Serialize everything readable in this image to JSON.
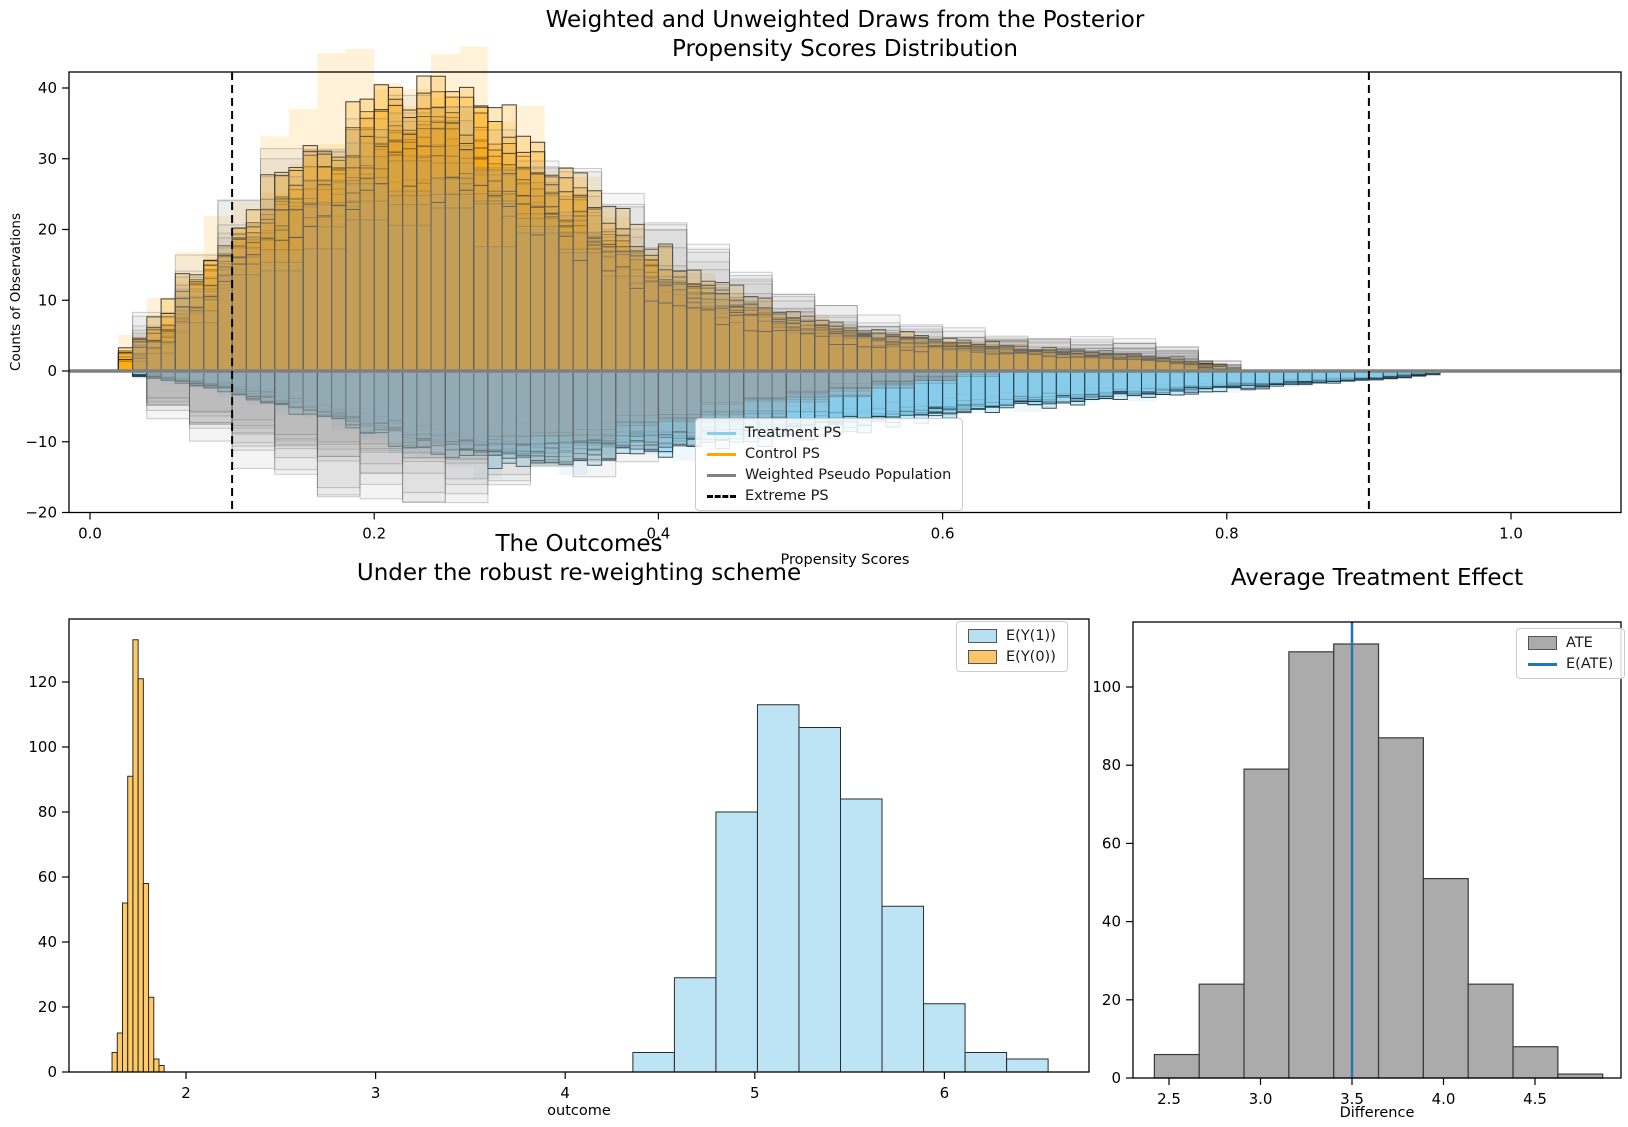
{
  "figure_background": "#ffffff",
  "colors": {
    "treatment_blue": "#87CEEB",
    "control_orange": "#FFA500",
    "weighted_gray": "#808080",
    "ate_bar_fill": "#ABABAB",
    "ate_bar_edge": "#3A3A3A",
    "eate_line_blue": "#1F77B4",
    "extreme_ps_dash": "#000000",
    "zero_line": "#808080",
    "bar_edge_dark": "#2B2B2B"
  },
  "chart_data": [
    {
      "type": "histogram-draws-mirrored",
      "title_line1": "Weighted and Unweighted Draws from the Posterior",
      "title_line2": "Propensity Scores Distribution",
      "xlabel": "Propensity Scores",
      "ylabel": "Counts of Observations",
      "xlim": [
        -0.015,
        1.077
      ],
      "ylim": [
        -20,
        42.3
      ],
      "xticks": [
        0.0,
        0.2,
        0.4,
        0.6,
        0.8,
        1.0
      ],
      "yticks": [
        -20,
        -10,
        0,
        10,
        20,
        30,
        40
      ],
      "extreme_ps_lines": [
        0.1,
        0.9
      ],
      "zero_line_y": 0,
      "n_posterior_draws": {
        "control": 14,
        "treatment": 14,
        "weighted": 9
      },
      "bin_width": {
        "colored": 0.01,
        "weighted": 0.03
      },
      "control_mean_profile": {
        "x": [
          0.02,
          0.05,
          0.08,
          0.11,
          0.14,
          0.17,
          0.2,
          0.23,
          0.26,
          0.29,
          0.32,
          0.35,
          0.38,
          0.42,
          0.46,
          0.5,
          0.55,
          0.6,
          0.65,
          0.7,
          0.75,
          0.78,
          0.8
        ],
        "counts": [
          1,
          5,
          12,
          18,
          23,
          27,
          31,
          33,
          31,
          28,
          24,
          20,
          15,
          11,
          8,
          6,
          4.5,
          3.5,
          2.8,
          2.2,
          1.6,
          1.0,
          0
        ]
      },
      "treatment_mean_profile": {
        "x": [
          0.03,
          0.06,
          0.1,
          0.14,
          0.18,
          0.22,
          0.26,
          0.3,
          0.35,
          0.4,
          0.45,
          0.5,
          0.55,
          0.6,
          0.65,
          0.7,
          0.75,
          0.8,
          0.85,
          0.9,
          0.94
        ],
        "counts": [
          0.4,
          1.2,
          2.5,
          4.5,
          6.5,
          8.5,
          10,
          10.5,
          10,
          9,
          8,
          7,
          6,
          5,
          4,
          3.2,
          2.6,
          2,
          1.4,
          1.0,
          0.3
        ]
      },
      "weighted_above_mean_profile": {
        "x": [
          0.03,
          0.06,
          0.1,
          0.14,
          0.18,
          0.22,
          0.27,
          0.32,
          0.37,
          0.42,
          0.47,
          0.52,
          0.58,
          0.64,
          0.7,
          0.76,
          0.8
        ],
        "counts": [
          2,
          8,
          16,
          22,
          26,
          28,
          26,
          23,
          19,
          14,
          10,
          7,
          5,
          4,
          3.5,
          3,
          0.5
        ]
      },
      "weighted_below_mean_profile": {
        "x": [
          0.04,
          0.08,
          0.12,
          0.16,
          0.2,
          0.25,
          0.3,
          0.35,
          0.4,
          0.45,
          0.5,
          0.56,
          0.62
        ],
        "counts": [
          3,
          6.5,
          9.5,
          11.5,
          13,
          13.5,
          12.5,
          11,
          8.5,
          6,
          4,
          2,
          0.5
        ]
      },
      "legend": [
        {
          "label": "Treatment PS",
          "swatch": "line",
          "color": "#87CEEB"
        },
        {
          "label": "Control PS",
          "swatch": "line",
          "color": "#FFA500"
        },
        {
          "label": "Weighted Pseudo Population",
          "swatch": "line",
          "color": "#808080"
        },
        {
          "label": "Extreme PS",
          "swatch": "dash",
          "color": "#000000"
        }
      ]
    },
    {
      "type": "histogram",
      "title_line1": "The Outcomes",
      "title_line2": "Under the robust re-weighting scheme",
      "xlabel": "outcome",
      "xlim": [
        1.38,
        6.76
      ],
      "ylim": [
        0,
        139
      ],
      "xticks": [
        2,
        3,
        4,
        5,
        6
      ],
      "yticks": [
        0,
        20,
        40,
        60,
        80,
        100,
        120
      ],
      "series": [
        {
          "name": "E(Y(1))",
          "color": "#87CEEB",
          "bin_start": 4.357,
          "bin_width": 0.219,
          "values": [
            6,
            29,
            80,
            113,
            106,
            84,
            51,
            21,
            6,
            4
          ]
        },
        {
          "name": "E(Y(0))",
          "color": "#FFA500",
          "bin_start": 1.61,
          "bin_width": 0.0275,
          "values": [
            6,
            12,
            52,
            91,
            133,
            121,
            58,
            23,
            4,
            2
          ]
        }
      ],
      "legend": [
        {
          "label": "E(Y(1))",
          "swatch": "patch",
          "color": "#B8DFF1"
        },
        {
          "label": "E(Y(0))",
          "swatch": "patch",
          "color": "#FBC56C"
        }
      ]
    },
    {
      "type": "histogram",
      "title": "Average Treatment Effect",
      "xlabel": "Difference",
      "xlim": [
        2.3,
        4.97
      ],
      "ylim": [
        0,
        116.6
      ],
      "xticks": [
        2.5,
        3.0,
        3.5,
        4.0,
        4.5
      ],
      "yticks": [
        0,
        20,
        40,
        60,
        80,
        100
      ],
      "bin_start": 2.42,
      "bin_width": 0.245,
      "values": [
        6,
        24,
        79,
        109,
        111,
        87,
        51,
        24,
        8,
        1
      ],
      "eate_line_x": 3.5,
      "legend": [
        {
          "label": "ATE",
          "swatch": "patch",
          "color": "#ABABAB"
        },
        {
          "label": "E(ATE)",
          "swatch": "line",
          "color": "#1F77B4"
        }
      ]
    }
  ]
}
